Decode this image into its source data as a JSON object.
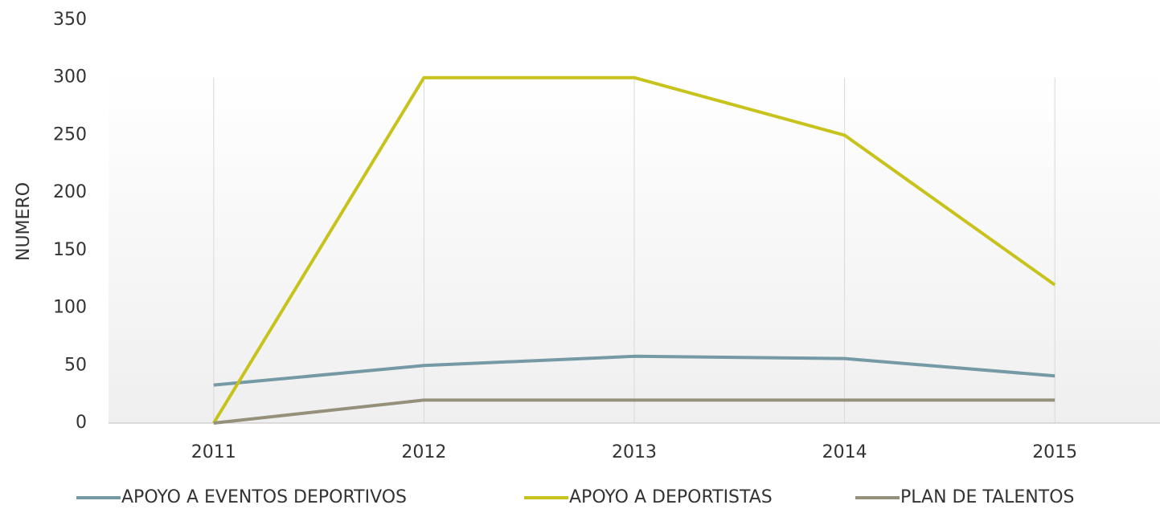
{
  "chart_data": {
    "type": "line",
    "y_label": "NUMERO",
    "categories": [
      "2011",
      "2012",
      "2013",
      "2014",
      "2015"
    ],
    "series": [
      {
        "name": "APOYO A EVENTOS DEPORTIVOS",
        "color": "#7599a5",
        "values": [
          33,
          50,
          58,
          56,
          41
        ]
      },
      {
        "name": "APOYO A DEPORTISTAS",
        "color": "#c8c21c",
        "values": [
          0,
          300,
          300,
          250,
          120
        ]
      },
      {
        "name": "PLAN DE TALENTOS",
        "color": "#959079",
        "values": [
          0,
          20,
          20,
          20,
          20
        ]
      }
    ],
    "ylim": [
      0,
      350
    ],
    "yticks": [
      0,
      50,
      100,
      150,
      200,
      250,
      300,
      350
    ],
    "legend": "bottom"
  }
}
